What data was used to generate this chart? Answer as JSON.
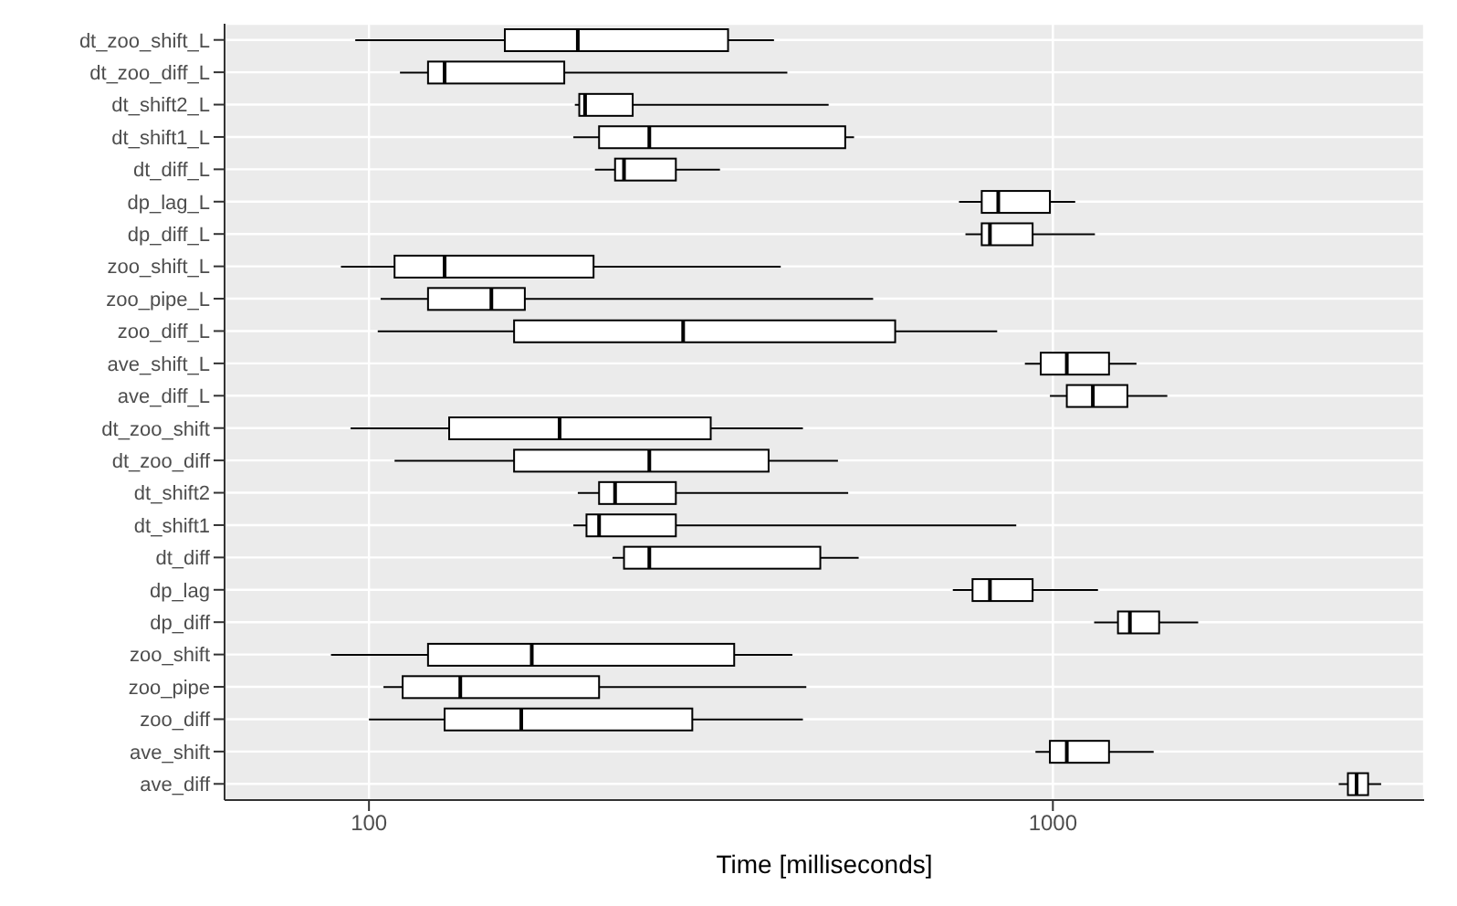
{
  "chart_data": {
    "type": "box",
    "orientation": "horizontal",
    "xlabel": "Time [milliseconds]",
    "log": "x",
    "grid": true,
    "color": "#000000",
    "xlim": [
      61.5,
      3490
    ],
    "xticks": [
      100,
      1000
    ],
    "categories": [
      "dt_zoo_shift_L",
      "dt_zoo_diff_L",
      "dt_shift2_L",
      "dt_shift1_L",
      "dt_diff_L",
      "dp_lag_L",
      "dp_diff_L",
      "zoo_shift_L",
      "zoo_pipe_L",
      "zoo_diff_L",
      "ave_shift_L",
      "ave_diff_L",
      "dt_zoo_shift",
      "dt_zoo_diff",
      "dt_shift2",
      "dt_shift1",
      "dt_diff",
      "dp_lag",
      "dp_diff",
      "zoo_shift",
      "zoo_pipe",
      "zoo_diff",
      "ave_shift",
      "ave_diff"
    ],
    "boxes": [
      {
        "low": 95.5,
        "q1": 158,
        "median": 202,
        "q3": 335,
        "high": 391
      },
      {
        "low": 111,
        "q1": 122,
        "median": 129,
        "q3": 193,
        "high": 409
      },
      {
        "low": 200,
        "q1": 203,
        "median": 207,
        "q3": 243,
        "high": 470
      },
      {
        "low": 199,
        "q1": 217,
        "median": 257,
        "q3": 497,
        "high": 512
      },
      {
        "low": 214,
        "q1": 229,
        "median": 236,
        "q3": 281,
        "high": 326
      },
      {
        "low": 729,
        "q1": 787,
        "median": 832,
        "q3": 990,
        "high": 1078
      },
      {
        "low": 745,
        "q1": 787,
        "median": 809,
        "q3": 934,
        "high": 1152
      },
      {
        "low": 91,
        "q1": 109,
        "median": 129,
        "q3": 213,
        "high": 400
      },
      {
        "low": 104,
        "q1": 122,
        "median": 151,
        "q3": 169,
        "high": 546
      },
      {
        "low": 103,
        "q1": 163,
        "median": 288,
        "q3": 588,
        "high": 829
      },
      {
        "low": 910,
        "q1": 960,
        "median": 1048,
        "q3": 1208,
        "high": 1325
      },
      {
        "low": 990,
        "q1": 1048,
        "median": 1144,
        "q3": 1285,
        "high": 1470
      },
      {
        "low": 94,
        "q1": 131,
        "median": 190,
        "q3": 316,
        "high": 431
      },
      {
        "low": 109,
        "q1": 163,
        "median": 257,
        "q3": 384,
        "high": 485
      },
      {
        "low": 202,
        "q1": 217,
        "median": 229,
        "q3": 281,
        "high": 502
      },
      {
        "low": 199,
        "q1": 208,
        "median": 217,
        "q3": 281,
        "high": 884
      },
      {
        "low": 227,
        "q1": 236,
        "median": 257,
        "q3": 457,
        "high": 520
      },
      {
        "low": 714,
        "q1": 763,
        "median": 809,
        "q3": 934,
        "high": 1164
      },
      {
        "low": 1149,
        "q1": 1245,
        "median": 1296,
        "q3": 1430,
        "high": 1631
      },
      {
        "low": 88,
        "q1": 122,
        "median": 173,
        "q3": 342,
        "high": 416
      },
      {
        "low": 105,
        "q1": 112,
        "median": 136,
        "q3": 217,
        "high": 436
      },
      {
        "low": 100,
        "q1": 129,
        "median": 167,
        "q3": 297,
        "high": 431
      },
      {
        "low": 943,
        "q1": 990,
        "median": 1048,
        "q3": 1208,
        "high": 1404
      },
      {
        "low": 2618,
        "q1": 2700,
        "median": 2780,
        "q3": 2890,
        "high": 3020
      }
    ]
  }
}
